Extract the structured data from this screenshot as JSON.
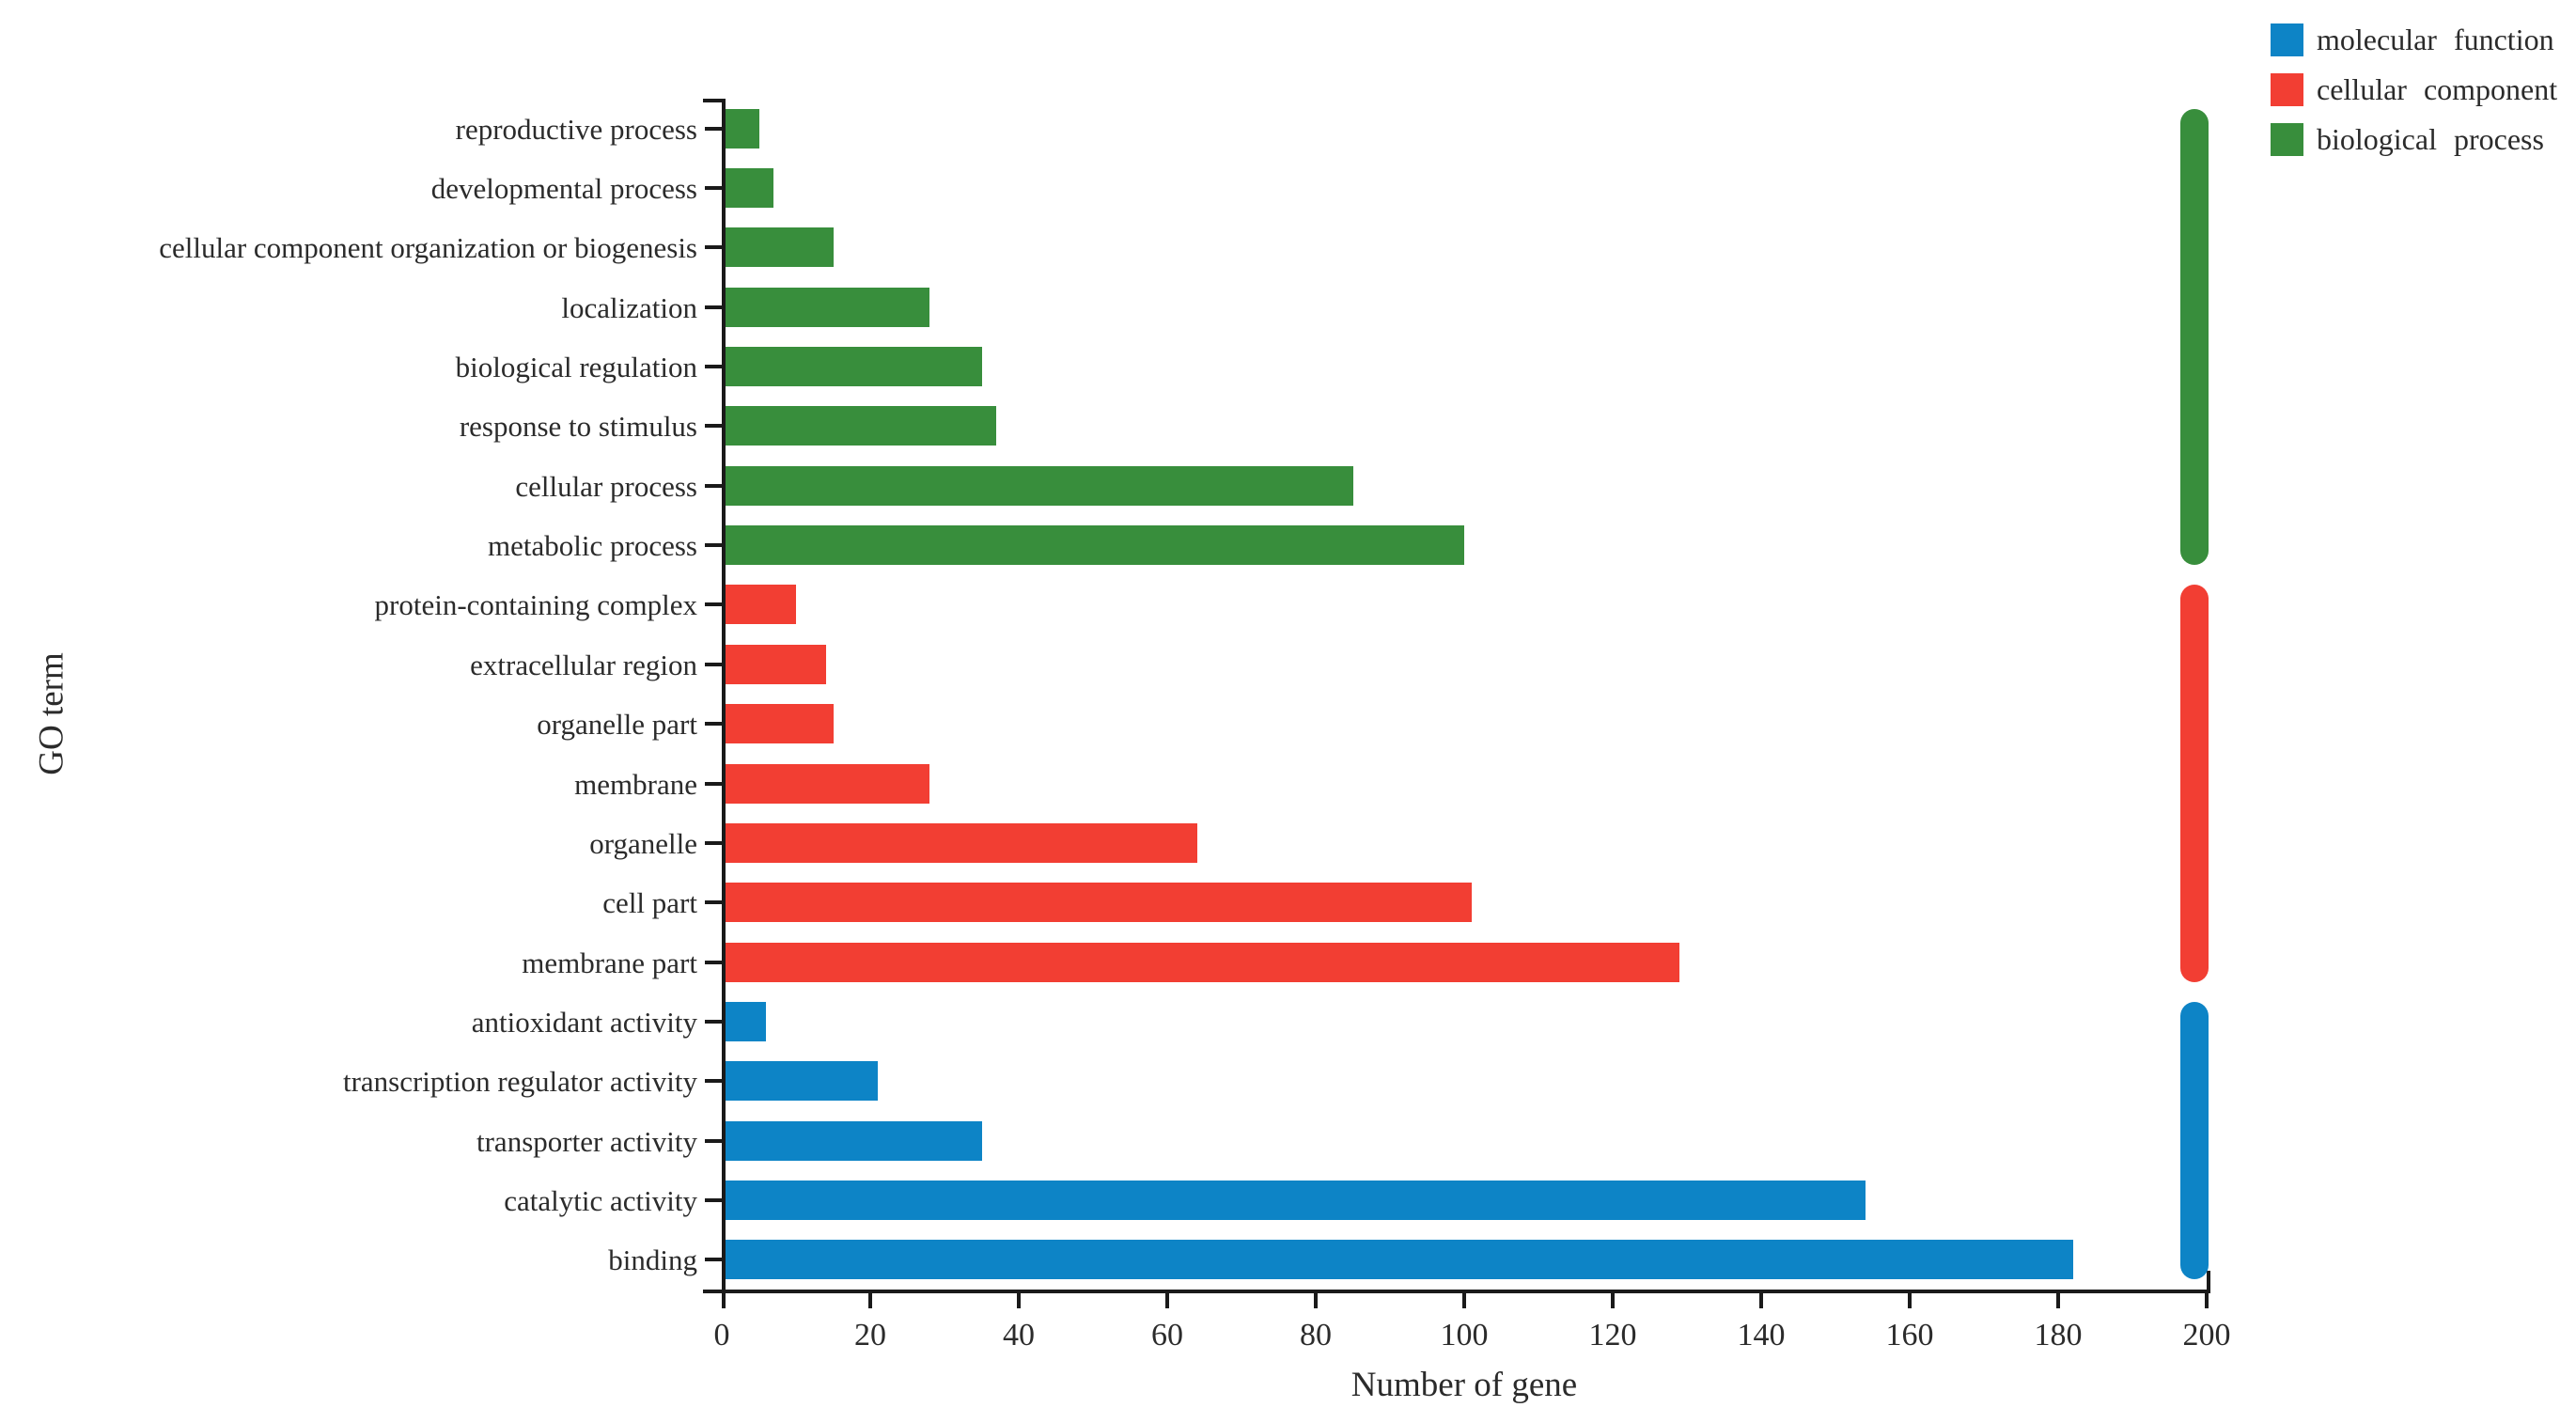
{
  "chart_data": {
    "type": "bar",
    "orientation": "horizontal",
    "title": "",
    "xlabel": "Number of gene",
    "ylabel": "GO term",
    "xlim": [
      0,
      200
    ],
    "xticks": [
      0,
      20,
      40,
      60,
      80,
      100,
      120,
      140,
      160,
      180,
      200
    ],
    "grid": false,
    "legend_position": "top-right",
    "legend": [
      {
        "label": "molecular function",
        "color": "#0d84c6"
      },
      {
        "label": "cellular component",
        "color": "#f23e33"
      },
      {
        "label": "biological process",
        "color": "#388e3c"
      }
    ],
    "bars": [
      {
        "label": "reproductive process",
        "value": 5,
        "group": "biological process"
      },
      {
        "label": "developmental process",
        "value": 7,
        "group": "biological process"
      },
      {
        "label": "cellular component organization or biogenesis",
        "value": 15,
        "group": "biological process"
      },
      {
        "label": "localization",
        "value": 28,
        "group": "biological process"
      },
      {
        "label": "biological regulation",
        "value": 35,
        "group": "biological process"
      },
      {
        "label": "response to stimulus",
        "value": 37,
        "group": "biological process"
      },
      {
        "label": "cellular process",
        "value": 85,
        "group": "biological process"
      },
      {
        "label": "metabolic process",
        "value": 100,
        "group": "biological process"
      },
      {
        "label": "protein-containing complex",
        "value": 10,
        "group": "cellular component"
      },
      {
        "label": "extracellular region",
        "value": 14,
        "group": "cellular component"
      },
      {
        "label": "organelle part",
        "value": 15,
        "group": "cellular component"
      },
      {
        "label": "membrane",
        "value": 28,
        "group": "cellular component"
      },
      {
        "label": "organelle",
        "value": 64,
        "group": "cellular component"
      },
      {
        "label": "cell part",
        "value": 101,
        "group": "cellular component"
      },
      {
        "label": "membrane part",
        "value": 129,
        "group": "cellular component"
      },
      {
        "label": "antioxidant activity",
        "value": 6,
        "group": "molecular function"
      },
      {
        "label": "transcription regulator activity",
        "value": 21,
        "group": "molecular function"
      },
      {
        "label": "transporter activity",
        "value": 35,
        "group": "molecular function"
      },
      {
        "label": "catalytic activity",
        "value": 154,
        "group": "molecular function"
      },
      {
        "label": "binding",
        "value": 182,
        "group": "molecular function"
      }
    ]
  }
}
